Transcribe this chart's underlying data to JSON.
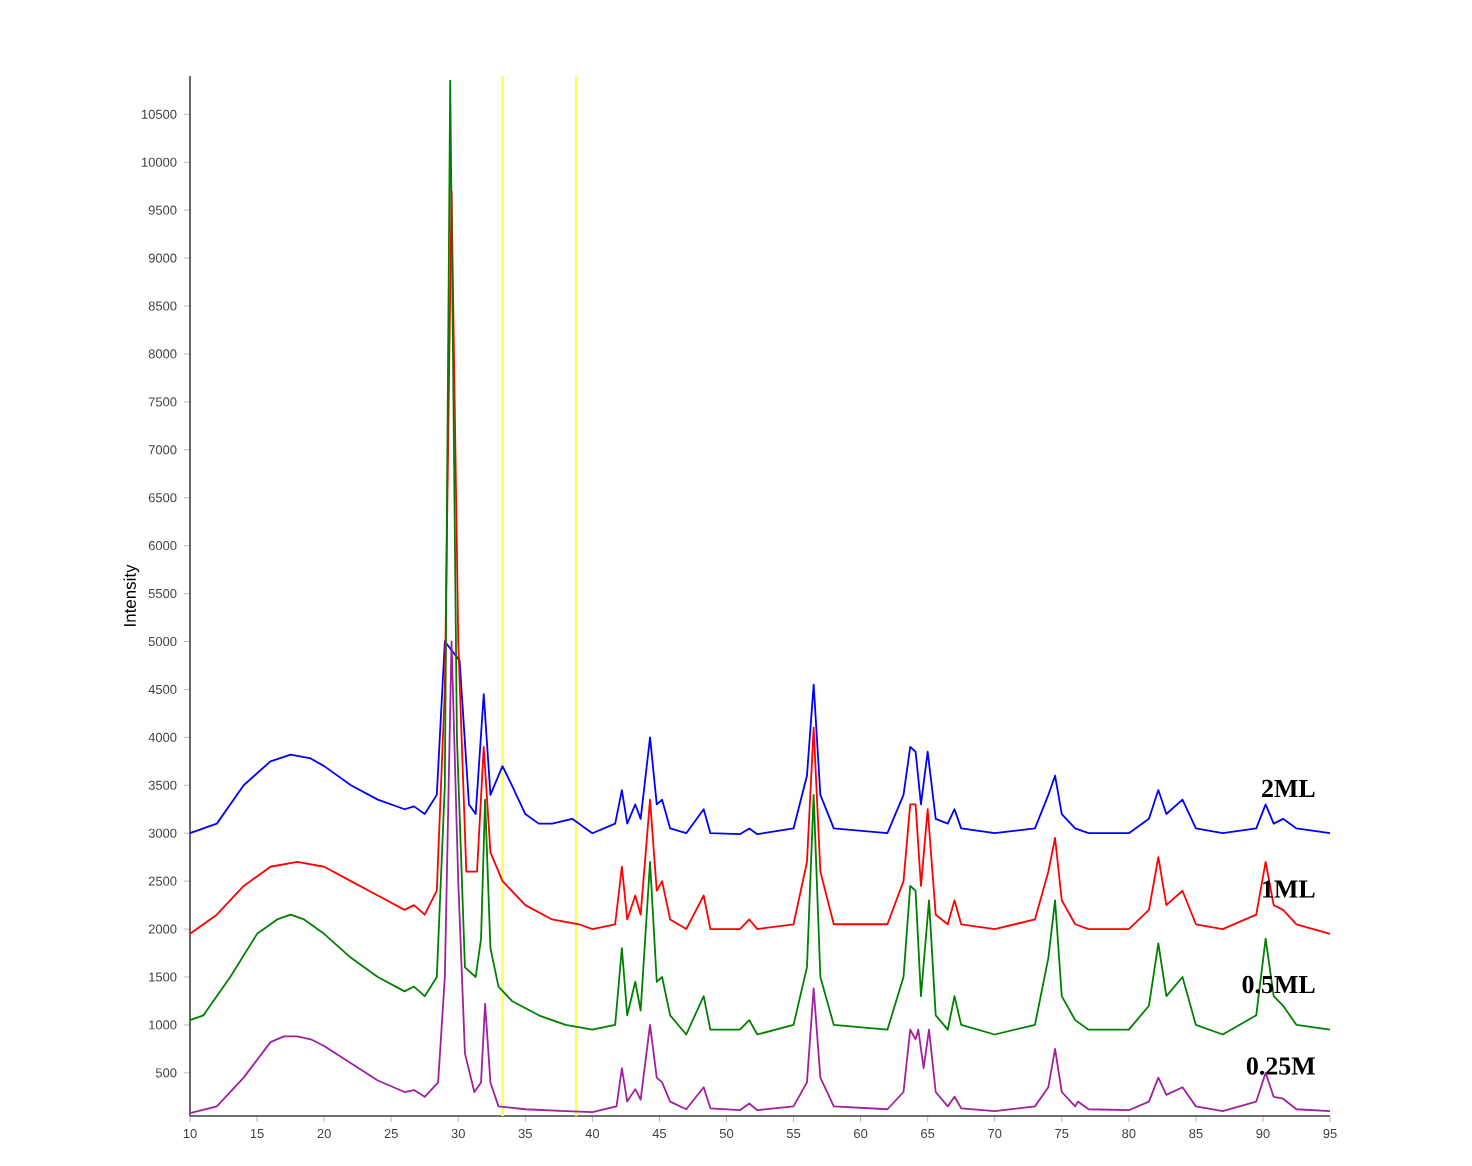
{
  "chart_data": {
    "type": "line",
    "ylabel": "Intensity",
    "xlim": [
      10,
      95
    ],
    "ylim": [
      50,
      10900
    ],
    "xticks": [
      10,
      15,
      20,
      25,
      30,
      35,
      40,
      45,
      50,
      55,
      60,
      65,
      70,
      75,
      80,
      85,
      90,
      95
    ],
    "yticks": [
      500,
      1000,
      1500,
      2000,
      2500,
      3000,
      3500,
      4000,
      4500,
      5000,
      5500,
      6000,
      6500,
      7000,
      7500,
      8000,
      8500,
      9000,
      9500,
      10000,
      10500
    ],
    "grid": false,
    "legend": false,
    "marker": "none",
    "line_style": "solid",
    "ref_lines": [
      {
        "axis": "x",
        "value": 33.3,
        "color": "#ffff55"
      },
      {
        "axis": "x",
        "value": 38.8,
        "color": "#ffff55"
      }
    ],
    "series": [
      {
        "name": "2ML",
        "color": "#0000ff",
        "x": [
          10,
          12,
          14,
          16,
          17.5,
          19,
          20,
          22,
          24,
          26,
          26.7,
          27.5,
          28.4,
          29.0,
          29.5,
          30.1,
          30.8,
          31.3,
          31.9,
          32.4,
          33.3,
          34,
          35,
          36,
          37,
          38.5,
          39.5,
          40,
          41.7,
          42.2,
          42.6,
          43.2,
          43.6,
          44.3,
          44.8,
          45.2,
          45.8,
          47,
          48.3,
          48.8,
          51,
          51.7,
          52.3,
          55,
          56,
          56.5,
          57,
          58,
          62,
          63.2,
          63.7,
          64.1,
          64.5,
          65.0,
          65.6,
          66.5,
          67,
          67.5,
          70,
          73,
          74,
          74.5,
          75,
          76,
          77,
          80,
          81.5,
          82.2,
          82.8,
          84,
          85,
          87,
          89.5,
          90.2,
          90.8,
          91.5,
          92.5,
          95
        ],
        "values": [
          3000,
          3100,
          3500,
          3750,
          3820,
          3780,
          3700,
          3500,
          3350,
          3250,
          3280,
          3200,
          3400,
          5000,
          null,
          4800,
          3300,
          3200,
          4450,
          3400,
          3700,
          3500,
          3200,
          3100,
          3100,
          3150,
          3050,
          3000,
          3100,
          3450,
          3100,
          3300,
          3150,
          4000,
          3300,
          3350,
          3050,
          3000,
          3250,
          3000,
          2990,
          3050,
          2990,
          3050,
          3600,
          4550,
          3400,
          3050,
          3000,
          3400,
          3900,
          3850,
          3300,
          3850,
          3150,
          3100,
          3250,
          3050,
          3000,
          3050,
          3400,
          3600,
          3200,
          3050,
          3000,
          3000,
          3150,
          3450,
          3200,
          3350,
          3050,
          3000,
          3050,
          3300,
          3100,
          3150,
          3050,
          3000
        ]
      },
      {
        "name": "1ML",
        "color": "#ff0000",
        "x": [
          10,
          12,
          14,
          16,
          18,
          20,
          22,
          24,
          26,
          26.7,
          27.5,
          28.4,
          29.0,
          29.5,
          30.0,
          30.6,
          31.4,
          31.9,
          32.4,
          33.3,
          35,
          37,
          39,
          40,
          41.7,
          42.2,
          42.6,
          43.2,
          43.6,
          44.3,
          44.8,
          45.2,
          45.8,
          47,
          48.3,
          48.8,
          51,
          51.7,
          52.3,
          55,
          56,
          56.5,
          57,
          58,
          62,
          63.2,
          63.7,
          64.1,
          64.5,
          65.0,
          65.6,
          66.5,
          67,
          67.5,
          70,
          73,
          74,
          74.5,
          75,
          76,
          77,
          80,
          81.5,
          82.2,
          82.8,
          84,
          85,
          87,
          89.5,
          90.2,
          90.8,
          91.5,
          92.5,
          95
        ],
        "values": [
          1950,
          2150,
          2450,
          2650,
          2700,
          2650,
          2500,
          2350,
          2200,
          2250,
          2150,
          2400,
          4500,
          9700,
          5000,
          2600,
          2600,
          3900,
          2800,
          2500,
          2250,
          2100,
          2050,
          2000,
          2050,
          2650,
          2100,
          2350,
          2150,
          3350,
          2400,
          2500,
          2100,
          2000,
          2350,
          2000,
          2000,
          2100,
          2000,
          2050,
          2700,
          4100,
          2600,
          2050,
          2050,
          2500,
          3300,
          3300,
          2450,
          3250,
          2150,
          2050,
          2300,
          2050,
          2000,
          2100,
          2600,
          2950,
          2300,
          2050,
          2000,
          2000,
          2200,
          2750,
          2250,
          2400,
          2050,
          2000,
          2150,
          2700,
          2250,
          2200,
          2050,
          1950
        ]
      },
      {
        "name": "0.5ML",
        "color": "#008000",
        "x": [
          10,
          11,
          13,
          15,
          16.5,
          17.5,
          18.5,
          20,
          22,
          24,
          26,
          26.7,
          27.5,
          28.4,
          29.0,
          29.4,
          29.9,
          30.5,
          31.3,
          31.7,
          32.0,
          32.4,
          33,
          34,
          36,
          38,
          40,
          41.7,
          42.2,
          42.6,
          43.2,
          43.6,
          44.3,
          44.8,
          45.2,
          45.8,
          47,
          48.3,
          48.8,
          51,
          51.7,
          52.3,
          55,
          56,
          56.5,
          57,
          58,
          62,
          63.2,
          63.7,
          64.1,
          64.5,
          65.1,
          65.6,
          66.5,
          67,
          67.5,
          70,
          73,
          74,
          74.5,
          75,
          76,
          77,
          80,
          81.5,
          82.2,
          82.8,
          84,
          85,
          87,
          89.5,
          90.2,
          90.8,
          91.5,
          92.5,
          95
        ],
        "values": [
          1050,
          1100,
          1500,
          1950,
          2100,
          2150,
          2100,
          1950,
          1700,
          1500,
          1350,
          1400,
          1300,
          1500,
          3500,
          10850,
          4000,
          1600,
          1500,
          1900,
          3350,
          1800,
          1400,
          1250,
          1100,
          1000,
          950,
          1000,
          1800,
          1100,
          1450,
          1150,
          2700,
          1450,
          1500,
          1100,
          900,
          1300,
          950,
          950,
          1050,
          900,
          1000,
          1600,
          3400,
          1500,
          1000,
          950,
          1500,
          2450,
          2400,
          1300,
          2300,
          1100,
          950,
          1300,
          1000,
          900,
          1000,
          1700,
          2300,
          1300,
          1050,
          950,
          950,
          1200,
          1850,
          1300,
          1500,
          1000,
          900,
          1100,
          1900,
          1300,
          1200,
          1000,
          950
        ]
      },
      {
        "name": "0.25M",
        "color": "#a020a0",
        "x": [
          10,
          12,
          14,
          16,
          17,
          18,
          19,
          20,
          22,
          24,
          26,
          26.7,
          27.5,
          28.5,
          29.0,
          29.5,
          30.0,
          30.5,
          31.2,
          31.7,
          32.0,
          32.4,
          33,
          35,
          38,
          40,
          41.8,
          42.2,
          42.6,
          43.2,
          43.6,
          44.3,
          44.8,
          45.2,
          45.8,
          47,
          48.3,
          48.8,
          51,
          51.7,
          52.3,
          55,
          56,
          56.5,
          57,
          58,
          62,
          63.2,
          63.7,
          64.1,
          64.3,
          64.7,
          65.1,
          65.6,
          66.5,
          67,
          67.5,
          70,
          73,
          74,
          74.5,
          75,
          76,
          76.2,
          77,
          80,
          81.5,
          82.2,
          82.8,
          84,
          85,
          87,
          89.5,
          90.2,
          90.8,
          91.5,
          92.5,
          95
        ],
        "values": [
          80,
          150,
          450,
          820,
          880,
          880,
          850,
          780,
          600,
          420,
          300,
          320,
          250,
          400,
          1500,
          5000,
          2500,
          700,
          300,
          400,
          1220,
          400,
          150,
          120,
          100,
          90,
          150,
          550,
          200,
          330,
          220,
          1000,
          450,
          400,
          200,
          120,
          350,
          130,
          110,
          180,
          110,
          150,
          400,
          1380,
          450,
          150,
          120,
          300,
          950,
          850,
          950,
          550,
          950,
          300,
          150,
          250,
          130,
          100,
          150,
          350,
          750,
          300,
          150,
          200,
          120,
          110,
          200,
          450,
          270,
          350,
          150,
          100,
          200,
          500,
          250,
          230,
          120,
          100
        ]
      }
    ]
  }
}
